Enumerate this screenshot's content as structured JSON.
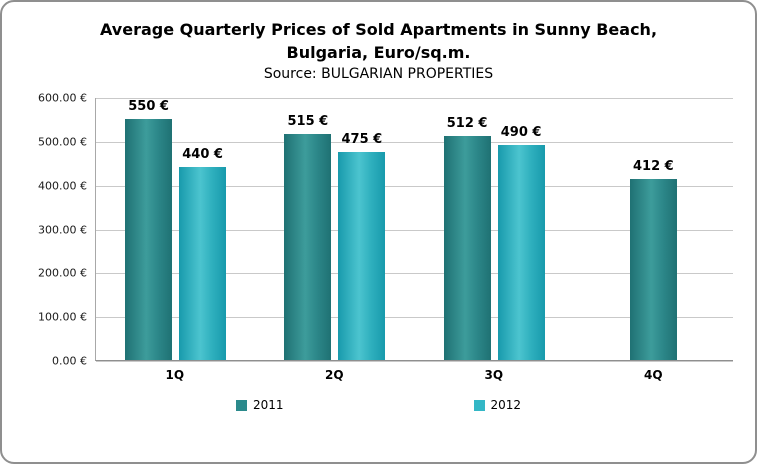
{
  "header": {
    "title_line1": "Average Quarterly Prices of Sold Apartments in Sunny Beach,",
    "title_line2": "Bulgaria, Euro/sq.m.",
    "subtitle": "Source: BULGARIAN PROPERTIES"
  },
  "chart_data": {
    "type": "bar",
    "title": "Average Quarterly Prices of Sold Apartments in Sunny Beach, Bulgaria, Euro/sq.m.",
    "subtitle": "Source: BULGARIAN PROPERTIES",
    "categories": [
      "1Q",
      "2Q",
      "3Q",
      "4Q"
    ],
    "series": [
      {
        "name": "2011",
        "color": "#2B8A8C",
        "values": [
          550,
          515,
          512,
          412
        ],
        "labels": [
          "550 €",
          "515 €",
          "512 €",
          "412 €"
        ]
      },
      {
        "name": "2012",
        "color": "#33B7C6",
        "values": [
          440,
          475,
          490,
          null
        ],
        "labels": [
          "440 €",
          "475 €",
          "490 €",
          null
        ]
      }
    ],
    "ylim": [
      0,
      600
    ],
    "ytick_step": 100,
    "yticks": [
      "600.00 €",
      "500.00 €",
      "400.00 €",
      "300.00 €",
      "200.00 €",
      "100.00 €",
      "0.00 €"
    ],
    "grid": true,
    "legend_position": "bottom",
    "data_label_suffix": " €"
  }
}
